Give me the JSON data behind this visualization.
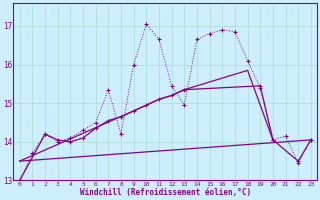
{
  "xlabel": "Windchill (Refroidissement éolien,°C)",
  "bg_color": "#cceeff",
  "grid_color": "#aaddcc",
  "line_color": "#880088",
  "xlim": [
    -0.5,
    23.5
  ],
  "ylim": [
    13.0,
    17.6
  ],
  "yticks": [
    13,
    14,
    15,
    16,
    17
  ],
  "xticks": [
    0,
    1,
    2,
    3,
    4,
    5,
    6,
    7,
    8,
    9,
    10,
    11,
    12,
    13,
    14,
    15,
    16,
    17,
    18,
    19,
    20,
    21,
    22,
    23
  ],
  "line1_x": [
    0,
    1,
    2,
    3,
    4,
    5,
    6,
    7,
    8,
    9,
    10,
    11,
    12,
    13,
    14,
    15,
    16,
    17,
    18,
    19,
    20,
    21,
    22,
    23
  ],
  "line1_y": [
    13.0,
    13.7,
    14.2,
    14.0,
    14.1,
    14.3,
    14.5,
    15.35,
    14.2,
    16.0,
    17.05,
    16.65,
    15.45,
    14.95,
    16.65,
    16.8,
    16.9,
    16.85,
    16.1,
    15.4,
    14.05,
    14.15,
    13.45,
    14.05
  ],
  "line2_x": [
    0,
    2,
    3,
    4,
    5,
    6,
    7,
    8,
    9,
    10,
    11,
    12,
    13,
    19,
    20,
    22,
    23
  ],
  "line2_y": [
    13.0,
    14.2,
    14.05,
    14.0,
    14.1,
    14.35,
    14.55,
    14.65,
    14.8,
    14.95,
    15.1,
    15.2,
    15.35,
    15.45,
    14.05,
    13.5,
    14.05
  ],
  "line3_x": [
    0,
    23
  ],
  "line3_y": [
    13.5,
    14.05
  ],
  "line4_x": [
    0,
    9,
    10,
    11,
    12,
    13,
    14,
    15,
    16,
    17,
    18,
    20
  ],
  "line4_y": [
    13.5,
    14.8,
    14.95,
    15.1,
    15.2,
    15.35,
    15.45,
    15.55,
    15.65,
    15.75,
    15.85,
    14.05
  ]
}
